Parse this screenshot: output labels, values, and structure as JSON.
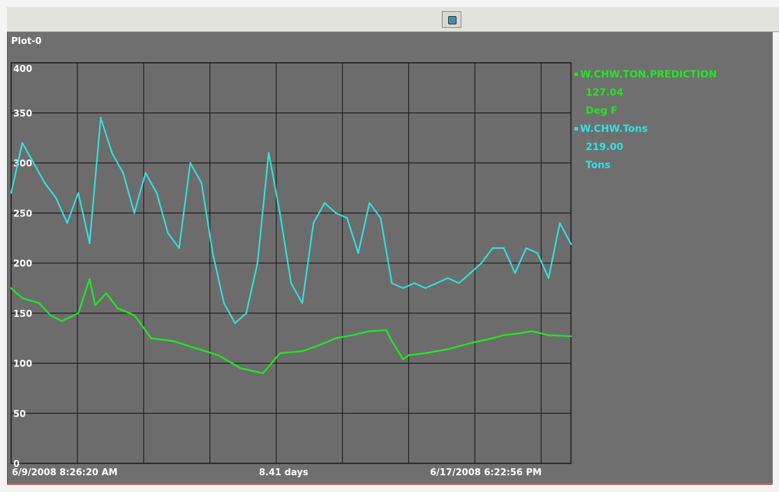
{
  "window": {
    "toolbar_icon": "window-icon"
  },
  "plot": {
    "title": "Plot-0",
    "footer": {
      "start": "6/9/2008 8:26:20 AM",
      "span": "8.41 days",
      "end": "6/17/2008 6:22:56 PM"
    },
    "legend": [
      {
        "name": "W.CHW.TON.PREDICTION",
        "value": "127.04",
        "unit": "Deg F",
        "color": "#22e622"
      },
      {
        "name": "W.CHW.Tons",
        "value": "219.00",
        "unit": "Tons",
        "color": "#33e0e0"
      }
    ]
  },
  "chart_data": {
    "type": "line",
    "ylim": [
      0,
      400
    ],
    "y_ticks": [
      "400",
      "350",
      "300",
      "250",
      "200",
      "150",
      "100",
      "50",
      "0"
    ],
    "x_range": [
      "6/9/2008 8:26:20 AM",
      "6/17/2008 6:22:56 PM"
    ],
    "grid": true,
    "legend_position": "right",
    "series": [
      {
        "name": "W.CHW.TON.PREDICTION",
        "color": "#22e622",
        "x": [
          0,
          0.02,
          0.05,
          0.07,
          0.09,
          0.12,
          0.14,
          0.15,
          0.17,
          0.19,
          0.22,
          0.25,
          0.29,
          0.33,
          0.37,
          0.41,
          0.45,
          0.48,
          0.52,
          0.55,
          0.58,
          0.61,
          0.64,
          0.67,
          0.68,
          0.7,
          0.71,
          0.74,
          0.78,
          0.82,
          0.86,
          0.88,
          0.91,
          0.93,
          0.96,
          1.0
        ],
        "values": [
          175,
          165,
          160,
          148,
          142,
          150,
          184,
          158,
          170,
          155,
          148,
          125,
          122,
          115,
          108,
          95,
          90,
          110,
          112,
          118,
          125,
          128,
          132,
          133,
          122,
          104,
          108,
          110,
          114,
          120,
          125,
          128,
          130,
          132,
          128,
          127
        ]
      },
      {
        "name": "W.CHW.Tons",
        "color": "#33e0e0",
        "x": [
          0,
          0.02,
          0.04,
          0.06,
          0.08,
          0.1,
          0.12,
          0.14,
          0.16,
          0.18,
          0.2,
          0.22,
          0.24,
          0.26,
          0.28,
          0.3,
          0.32,
          0.34,
          0.36,
          0.38,
          0.4,
          0.42,
          0.44,
          0.46,
          0.48,
          0.5,
          0.52,
          0.54,
          0.56,
          0.58,
          0.6,
          0.62,
          0.64,
          0.66,
          0.68,
          0.7,
          0.72,
          0.74,
          0.76,
          0.78,
          0.8,
          0.82,
          0.84,
          0.86,
          0.88,
          0.9,
          0.92,
          0.94,
          0.96,
          0.98,
          1.0
        ],
        "values": [
          270,
          320,
          300,
          280,
          265,
          240,
          270,
          220,
          345,
          310,
          290,
          250,
          290,
          270,
          230,
          215,
          300,
          280,
          210,
          160,
          140,
          150,
          200,
          310,
          250,
          180,
          160,
          240,
          260,
          250,
          245,
          210,
          260,
          245,
          180,
          175,
          180,
          175,
          180,
          185,
          180,
          190,
          200,
          215,
          215,
          190,
          215,
          210,
          185,
          240,
          219
        ]
      }
    ]
  }
}
